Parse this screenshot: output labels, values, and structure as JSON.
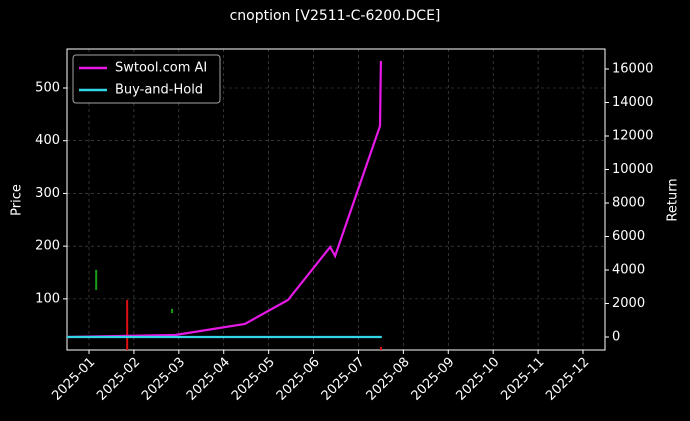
{
  "chart_data": {
    "type": "line",
    "title": "cnoption [V2511-C-6200.DCE]",
    "y_label": "Price",
    "y2_label": "Return",
    "xlim": [
      0.51,
      12.49
    ],
    "xticks": [
      {
        "value": 1,
        "label": "2025-01"
      },
      {
        "value": 2,
        "label": "2025-02"
      },
      {
        "value": 3,
        "label": "2025-03"
      },
      {
        "value": 4,
        "label": "2025-04"
      },
      {
        "value": 5,
        "label": "2025-05"
      },
      {
        "value": 6,
        "label": "2025-06"
      },
      {
        "value": 7,
        "label": "2025-07"
      },
      {
        "value": 8,
        "label": "2025-08"
      },
      {
        "value": 9,
        "label": "2025-09"
      },
      {
        "value": 10,
        "label": "2025-10"
      },
      {
        "value": 11,
        "label": "2025-11"
      },
      {
        "value": 12,
        "label": "2025-12"
      }
    ],
    "ylim": [
      3,
      574
    ],
    "yticks": [
      100,
      200,
      300,
      400,
      500
    ],
    "y2lim": [
      -776,
      17194
    ],
    "y2ticks": [
      0,
      2000,
      4000,
      6000,
      8000,
      10000,
      12000,
      14000,
      16000
    ],
    "grid": true,
    "legend": "upper left",
    "series": [
      {
        "name": "Swtool.com AI",
        "color": "#e619e6",
        "axis": "y2",
        "x": [
          0.51,
          2.92,
          4.47,
          5.43,
          6.37,
          6.48,
          7.48,
          7.5
        ],
        "values": [
          0,
          120,
          776,
          2209,
          5373,
          4836,
          12597,
          16478
        ]
      },
      {
        "name": "Buy-and-Hold",
        "color": "#33d6e6",
        "axis": "y2",
        "x": [
          0.51,
          7.52
        ],
        "values": [
          0,
          0
        ]
      }
    ],
    "price_bars": {
      "x": [
        1.16,
        1.85,
        2.85,
        7.5
      ],
      "low": [
        117,
        3,
        73,
        3
      ],
      "high": [
        155,
        98,
        81,
        9
      ],
      "colors": [
        "#1a9e1a",
        "#e01010",
        "#1a9e1a",
        "#e01010"
      ]
    }
  }
}
